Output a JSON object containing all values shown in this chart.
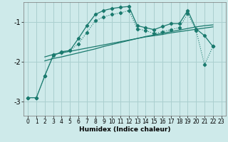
{
  "xlabel": "Humidex (Indice chaleur)",
  "background_color": "#ceeaea",
  "grid_color": "#aacfcf",
  "line_color": "#1a7a6e",
  "xlim": [
    -0.5,
    23.5
  ],
  "ylim": [
    -3.35,
    -0.52
  ],
  "yticks": [
    -3,
    -2,
    -1
  ],
  "xticks": [
    0,
    1,
    2,
    3,
    4,
    5,
    6,
    7,
    8,
    9,
    10,
    11,
    12,
    13,
    14,
    15,
    16,
    17,
    18,
    19,
    20,
    21,
    22,
    23
  ],
  "curve1_x": [
    0,
    1,
    2,
    3,
    4,
    5,
    6,
    7,
    8,
    9,
    10,
    11,
    12,
    13,
    14,
    15,
    16,
    17,
    18,
    19,
    20,
    21,
    22
  ],
  "curve1_y": [
    -2.9,
    -2.9,
    -2.35,
    -1.85,
    -1.75,
    -1.72,
    -1.42,
    -1.1,
    -0.82,
    -0.72,
    -0.67,
    -0.64,
    -0.62,
    -1.1,
    -1.15,
    -1.2,
    -1.12,
    -1.05,
    -1.05,
    -0.72,
    -1.18,
    -1.35,
    -1.62
  ],
  "curve2_x": [
    0,
    1,
    2,
    3,
    4,
    5,
    6,
    7,
    8,
    9,
    10,
    11,
    12,
    13,
    14,
    15,
    16,
    17,
    18,
    19,
    20,
    21,
    22
  ],
  "curve2_y": [
    -2.9,
    -2.9,
    -2.35,
    -1.82,
    -1.78,
    -1.72,
    -1.55,
    -1.27,
    -0.98,
    -0.88,
    -0.82,
    -0.78,
    -0.72,
    -1.18,
    -1.22,
    -1.3,
    -1.25,
    -1.2,
    -1.15,
    -0.8,
    -1.22,
    -2.08,
    -1.62
  ],
  "curve3_x": [
    2,
    3,
    4,
    5,
    6,
    7,
    8,
    9,
    10,
    11,
    12,
    13,
    14,
    15,
    16,
    17,
    18,
    19,
    20,
    21,
    22
  ],
  "curve3_y": [
    -1.88,
    -1.82,
    -1.78,
    -1.74,
    -1.7,
    -1.66,
    -1.62,
    -1.58,
    -1.54,
    -1.5,
    -1.46,
    -1.42,
    -1.38,
    -1.35,
    -1.32,
    -1.28,
    -1.25,
    -1.22,
    -1.19,
    -1.16,
    -1.13
  ],
  "curve4_x": [
    2,
    3,
    4,
    5,
    6,
    7,
    8,
    9,
    10,
    11,
    12,
    13,
    14,
    15,
    16,
    17,
    18,
    19,
    20,
    21,
    22
  ],
  "curve4_y": [
    -1.98,
    -1.92,
    -1.88,
    -1.83,
    -1.78,
    -1.73,
    -1.68,
    -1.62,
    -1.57,
    -1.52,
    -1.47,
    -1.42,
    -1.37,
    -1.33,
    -1.29,
    -1.25,
    -1.21,
    -1.17,
    -1.13,
    -1.1,
    -1.08
  ]
}
